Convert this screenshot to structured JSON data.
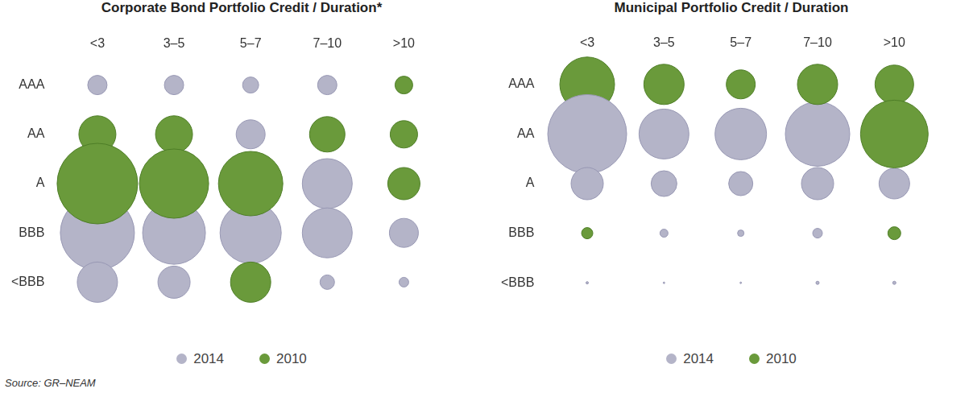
{
  "chart_data": [
    {
      "type": "bubble",
      "title": "Corporate Bond Portfolio Credit / Duration*",
      "categories": [
        "<3",
        "3–5",
        "5–7",
        "7–10",
        ">10"
      ],
      "y_categories": [
        "AAA",
        "AA",
        "A",
        "BBB",
        "<BBB"
      ],
      "series": [
        {
          "name": "2014",
          "color": "#b4b4c8",
          "sizes": [
            [
              12,
              12,
              10,
              12,
              8
            ],
            [
              21,
              20,
              18,
              21,
              11
            ],
            [
              49,
              42,
              37,
              31,
              19
            ],
            [
              46,
              39,
              38,
              31,
              18
            ],
            [
              25,
              20,
              20,
              9,
              6
            ]
          ]
        },
        {
          "name": "2010",
          "color": "#6a9a3b",
          "sizes": [
            [
              null,
              null,
              null,
              null,
              11
            ],
            [
              23,
              23,
              null,
              22,
              17
            ],
            [
              50,
              43,
              40,
              null,
              20
            ],
            [
              null,
              null,
              null,
              null,
              null
            ],
            [
              null,
              null,
              25,
              null,
              null
            ]
          ]
        }
      ],
      "grid": false,
      "legend": "bottom",
      "annotations": [
        "Source: GR–NEAM"
      ]
    },
    {
      "type": "bubble",
      "title": "Municipal Portfolio Credit / Duration",
      "categories": [
        "<3",
        "3–5",
        "5–7",
        "7–10",
        ">10"
      ],
      "y_categories": [
        "AAA",
        "AA",
        "A",
        "BBB",
        "<BBB"
      ],
      "series": [
        {
          "name": "2014",
          "color": "#b4b4c8",
          "sizes": [
            [
              19,
              17,
              16,
              19,
              17
            ],
            [
              49,
              31,
              32,
              40,
              33
            ],
            [
              20,
              16,
              15,
              20,
              19
            ],
            [
              5,
              5,
              4,
              6,
              6
            ],
            [
              1.5,
              1,
              1,
              2,
              2
            ]
          ]
        },
        {
          "name": "2010",
          "color": "#6a9a3b",
          "sizes": [
            [
              34,
              25,
              18,
              25,
              24
            ],
            [
              20,
              30,
              31,
              null,
              42
            ],
            [
              14,
              13,
              13,
              17,
              null
            ],
            [
              7,
              null,
              null,
              null,
              8
            ],
            [
              null,
              null,
              null,
              null,
              null
            ]
          ]
        }
      ],
      "grid": false,
      "legend": "bottom"
    }
  ]
}
